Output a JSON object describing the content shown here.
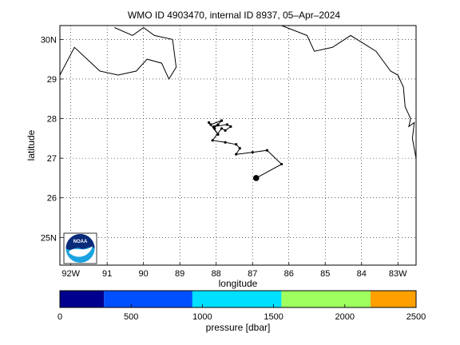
{
  "title": "WMO ID 4903470, internal ID 8937, 05–Apr–2024",
  "map": {
    "xlabel": "longitude",
    "ylabel": "latitude",
    "xlim": [
      -92.3,
      -82.5
    ],
    "ylim": [
      24.3,
      30.35
    ],
    "xticks": [
      {
        "value": -92,
        "label": "92W"
      },
      {
        "value": -91,
        "label": "91"
      },
      {
        "value": -90,
        "label": "90"
      },
      {
        "value": -89,
        "label": "89"
      },
      {
        "value": -88,
        "label": "88"
      },
      {
        "value": -87,
        "label": "87"
      },
      {
        "value": -86,
        "label": "86"
      },
      {
        "value": -85,
        "label": "85"
      },
      {
        "value": -84,
        "label": "84"
      },
      {
        "value": -83,
        "label": "83W"
      }
    ],
    "yticks": [
      {
        "value": 25,
        "label": "25N"
      },
      {
        "value": 26,
        "label": "26"
      },
      {
        "value": 27,
        "label": "27"
      },
      {
        "value": 28,
        "label": "28"
      },
      {
        "value": 29,
        "label": "29"
      },
      {
        "value": 30,
        "label": "30N"
      }
    ],
    "grid": true,
    "grid_style": "dotted",
    "coastline": [
      [
        [
          -92.3,
          29.1
        ],
        [
          -91.9,
          29.8
        ],
        [
          -91.2,
          29.2
        ],
        [
          -90.7,
          29.1
        ],
        [
          -90.2,
          29.2
        ],
        [
          -89.9,
          29.5
        ],
        [
          -89.5,
          29.4
        ],
        [
          -89.3,
          29.0
        ],
        [
          -89.1,
          29.3
        ],
        [
          -89.2,
          30.0
        ],
        [
          -89.7,
          30.1
        ],
        [
          -90.0,
          30.3
        ],
        [
          -90.3,
          30.1
        ],
        [
          -90.8,
          30.3
        ]
      ],
      [
        [
          -86.2,
          30.35
        ],
        [
          -85.5,
          30.1
        ],
        [
          -85.3,
          29.7
        ],
        [
          -84.8,
          29.8
        ],
        [
          -84.3,
          30.1
        ],
        [
          -83.6,
          29.7
        ],
        [
          -83.2,
          29.2
        ],
        [
          -83.0,
          29.1
        ],
        [
          -82.85,
          28.8
        ],
        [
          -82.8,
          28.3
        ],
        [
          -82.65,
          28.0
        ],
        [
          -82.7,
          27.8
        ],
        [
          -82.55,
          27.9
        ],
        [
          -82.6,
          27.5
        ],
        [
          -82.5,
          27.0
        ]
      ]
    ],
    "trajectory": [
      [
        -88.2,
        27.9
      ],
      [
        -88.05,
        27.75
      ],
      [
        -87.95,
        27.6
      ],
      [
        -88.15,
        27.85
      ],
      [
        -87.85,
        27.95
      ],
      [
        -87.95,
        27.85
      ],
      [
        -88.05,
        27.8
      ],
      [
        -87.7,
        27.85
      ],
      [
        -87.6,
        27.8
      ],
      [
        -87.75,
        27.7
      ],
      [
        -87.85,
        27.75
      ],
      [
        -88.1,
        27.45
      ],
      [
        -87.75,
        27.4
      ],
      [
        -87.45,
        27.35
      ],
      [
        -87.35,
        27.25
      ],
      [
        -87.45,
        27.1
      ],
      [
        -87.0,
        27.15
      ],
      [
        -86.6,
        27.2
      ],
      [
        -86.2,
        26.85
      ],
      [
        -86.9,
        26.5
      ]
    ],
    "current_position": [
      -86.9,
      26.5
    ],
    "line_color": "#000000",
    "logo_text": "NOAA"
  },
  "colorbar": {
    "label": "pressure [dbar]",
    "min": 0,
    "max": 2500,
    "ticks": [
      0,
      500,
      1000,
      1500,
      2000,
      2500
    ],
    "tick_labels": [
      "0",
      "500",
      "1000",
      "1500",
      "2000",
      "2500"
    ],
    "segments": [
      {
        "from": 0,
        "to": 310,
        "color": "#00008f"
      },
      {
        "from": 310,
        "to": 930,
        "color": "#0050ff"
      },
      {
        "from": 930,
        "to": 1555,
        "color": "#00dfff"
      },
      {
        "from": 1555,
        "to": 2180,
        "color": "#9fff5f"
      },
      {
        "from": 2180,
        "to": 2500,
        "color": "#ffa000"
      }
    ]
  }
}
